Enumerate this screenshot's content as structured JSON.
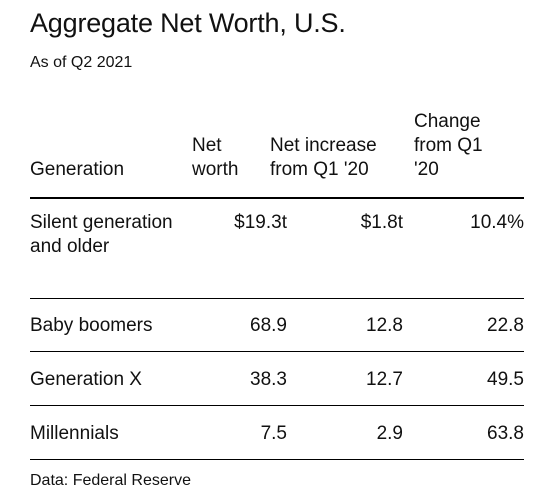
{
  "title": "Aggregate Net Worth, U.S.",
  "subtitle": "As of Q2 2021",
  "source": "Data: Federal Reserve",
  "chart_data": {
    "type": "table",
    "title": "Aggregate Net Worth, U.S.",
    "subtitle": "As of Q2 2021",
    "columns": [
      "Generation",
      "Net\nworth",
      "Net increase\nfrom Q1 '20",
      "Change\nfrom Q1\n'20"
    ],
    "rows": [
      {
        "generation": "Silent generation and older",
        "net_worth": "$19.3t",
        "net_increase": "$1.8t",
        "change": "10.4%"
      },
      {
        "generation": "Baby boomers",
        "net_worth": "68.9",
        "net_increase": "12.8",
        "change": "22.8"
      },
      {
        "generation": "Generation X",
        "net_worth": "38.3",
        "net_increase": "12.7",
        "change": "49.5"
      },
      {
        "generation": "Millennials",
        "net_worth": "7.5",
        "net_increase": "2.9",
        "change": "63.8"
      }
    ],
    "source": "Data: Federal Reserve"
  }
}
